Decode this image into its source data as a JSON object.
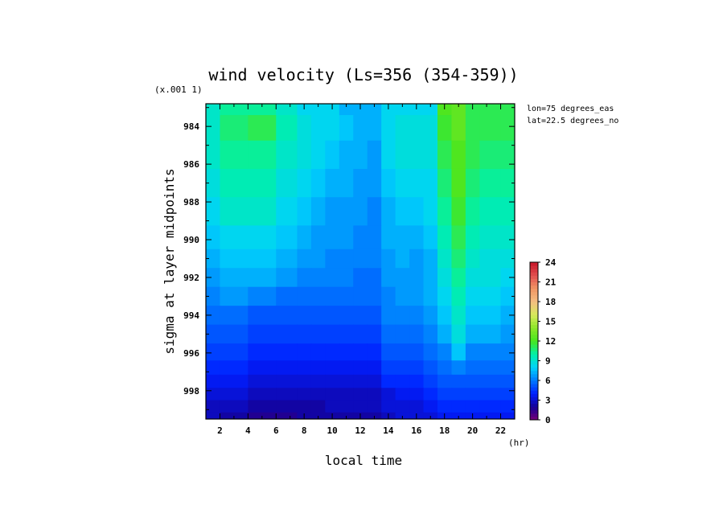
{
  "chart_data": {
    "type": "heatmap",
    "title": "wind velocity (Ls=356 (354-359))",
    "xlabel": "local time",
    "ylabel": "sigma at layer midpoints",
    "x_unit": "(hr)",
    "y_scale_note": "(x.001 1)",
    "annotations": [
      "lon=75 degrees_eas",
      "lat=22.5 degrees_no"
    ],
    "x_ticks": [
      2,
      4,
      6,
      8,
      10,
      12,
      14,
      16,
      18,
      20,
      22
    ],
    "x_range": [
      1,
      23
    ],
    "y_ticks": [
      984,
      986,
      988,
      990,
      992,
      994,
      996,
      998
    ],
    "y_range": [
      982.8,
      999.5
    ],
    "y_inverted": true,
    "colorbar": {
      "ticks": [
        0,
        3,
        6,
        9,
        12,
        15,
        18,
        21,
        24
      ],
      "range": [
        0,
        24
      ]
    },
    "x": [
      1,
      3,
      5,
      7,
      8,
      9,
      10,
      11,
      12,
      13,
      14,
      15,
      16,
      17,
      18,
      19,
      20,
      21,
      23
    ],
    "y": [
      982.8,
      984,
      985.5,
      987,
      988.5,
      990,
      991,
      992,
      993,
      994,
      995,
      996,
      996.8,
      997.5,
      998.2,
      998.8,
      999.5
    ],
    "z": [
      [
        9,
        10,
        10,
        9,
        8,
        8,
        8,
        7,
        7,
        7,
        8,
        8,
        8,
        8,
        12,
        12.5,
        11,
        11,
        11
      ],
      [
        9,
        10.5,
        11,
        9.5,
        8.5,
        8,
        8,
        7.5,
        7,
        7,
        8,
        8.5,
        8.5,
        8.5,
        11.5,
        12.5,
        11,
        11,
        11
      ],
      [
        9,
        10,
        10,
        9,
        8.5,
        8,
        7.5,
        7,
        7,
        6.5,
        8,
        8.5,
        8.5,
        8.5,
        11,
        12,
        11,
        10.5,
        10.5
      ],
      [
        8.5,
        9.5,
        9.5,
        8.5,
        8,
        7.5,
        7,
        7,
        6.5,
        6.5,
        7.5,
        8,
        8,
        8,
        10.5,
        12,
        10.5,
        10,
        10
      ],
      [
        8,
        9,
        9,
        8,
        7.5,
        7,
        6.5,
        6.5,
        6.5,
        6,
        7,
        7.5,
        7.5,
        8,
        10,
        11.5,
        10,
        9.5,
        9.5
      ],
      [
        7.5,
        8,
        8,
        7.5,
        7,
        6.5,
        6.5,
        6.5,
        6,
        6,
        7,
        7,
        7,
        7.5,
        9.5,
        11,
        9.5,
        9,
        9
      ],
      [
        7,
        7.5,
        7.5,
        7,
        6.5,
        6.5,
        6,
        6,
        6,
        6,
        6.5,
        7,
        6.5,
        7,
        9,
        10.5,
        9,
        8.5,
        8.5
      ],
      [
        6.5,
        7,
        7,
        6.5,
        6,
        6,
        6,
        6,
        5.5,
        5.5,
        6.5,
        6.5,
        6.5,
        7,
        8.5,
        10,
        8.5,
        8.5,
        8
      ],
      [
        6,
        6.5,
        6,
        5.5,
        5.5,
        5.5,
        5.5,
        5.5,
        5.5,
        5.5,
        6,
        6.5,
        6.5,
        7,
        8,
        9.5,
        8,
        8,
        7.5
      ],
      [
        5.5,
        5.5,
        5,
        5,
        5,
        5,
        5,
        5,
        5,
        5,
        6,
        6,
        6,
        6.5,
        7.5,
        9,
        7.5,
        7.5,
        7
      ],
      [
        5,
        5,
        4.5,
        4.5,
        4.5,
        4.5,
        4.5,
        4.5,
        4.5,
        4.5,
        5.5,
        5.5,
        5.5,
        6,
        7,
        8.5,
        7,
        7,
        6.5
      ],
      [
        4.5,
        4.5,
        4,
        4,
        4,
        4,
        4,
        4,
        4,
        4,
        5,
        5,
        5,
        5.5,
        6,
        7.5,
        6,
        6,
        6
      ],
      [
        4,
        4,
        3.5,
        3.5,
        3.5,
        3.5,
        3.5,
        3.5,
        3.5,
        3.5,
        4.5,
        4.5,
        4.5,
        5,
        5.5,
        6,
        5.5,
        5.5,
        5.5
      ],
      [
        3.5,
        3.5,
        3,
        3,
        3,
        3,
        3,
        3,
        3,
        3,
        4,
        4,
        4,
        4.5,
        5,
        5,
        5,
        5,
        5
      ],
      [
        3,
        3,
        2.5,
        2.5,
        2.5,
        2.5,
        2.5,
        2.5,
        2.5,
        2.5,
        3,
        3.5,
        3.5,
        4,
        4.5,
        4.5,
        4.5,
        4.5,
        4.5
      ],
      [
        2.5,
        2.5,
        2,
        2,
        2,
        2,
        2.5,
        2.5,
        2.5,
        2.5,
        3,
        3,
        3,
        3.5,
        4,
        4,
        4,
        4,
        4
      ],
      [
        2.5,
        2,
        1.5,
        1.5,
        2,
        2,
        2,
        2,
        2,
        2,
        2.5,
        3,
        3,
        3,
        3.5,
        3.5,
        3.5,
        3.5,
        3.5
      ]
    ]
  }
}
